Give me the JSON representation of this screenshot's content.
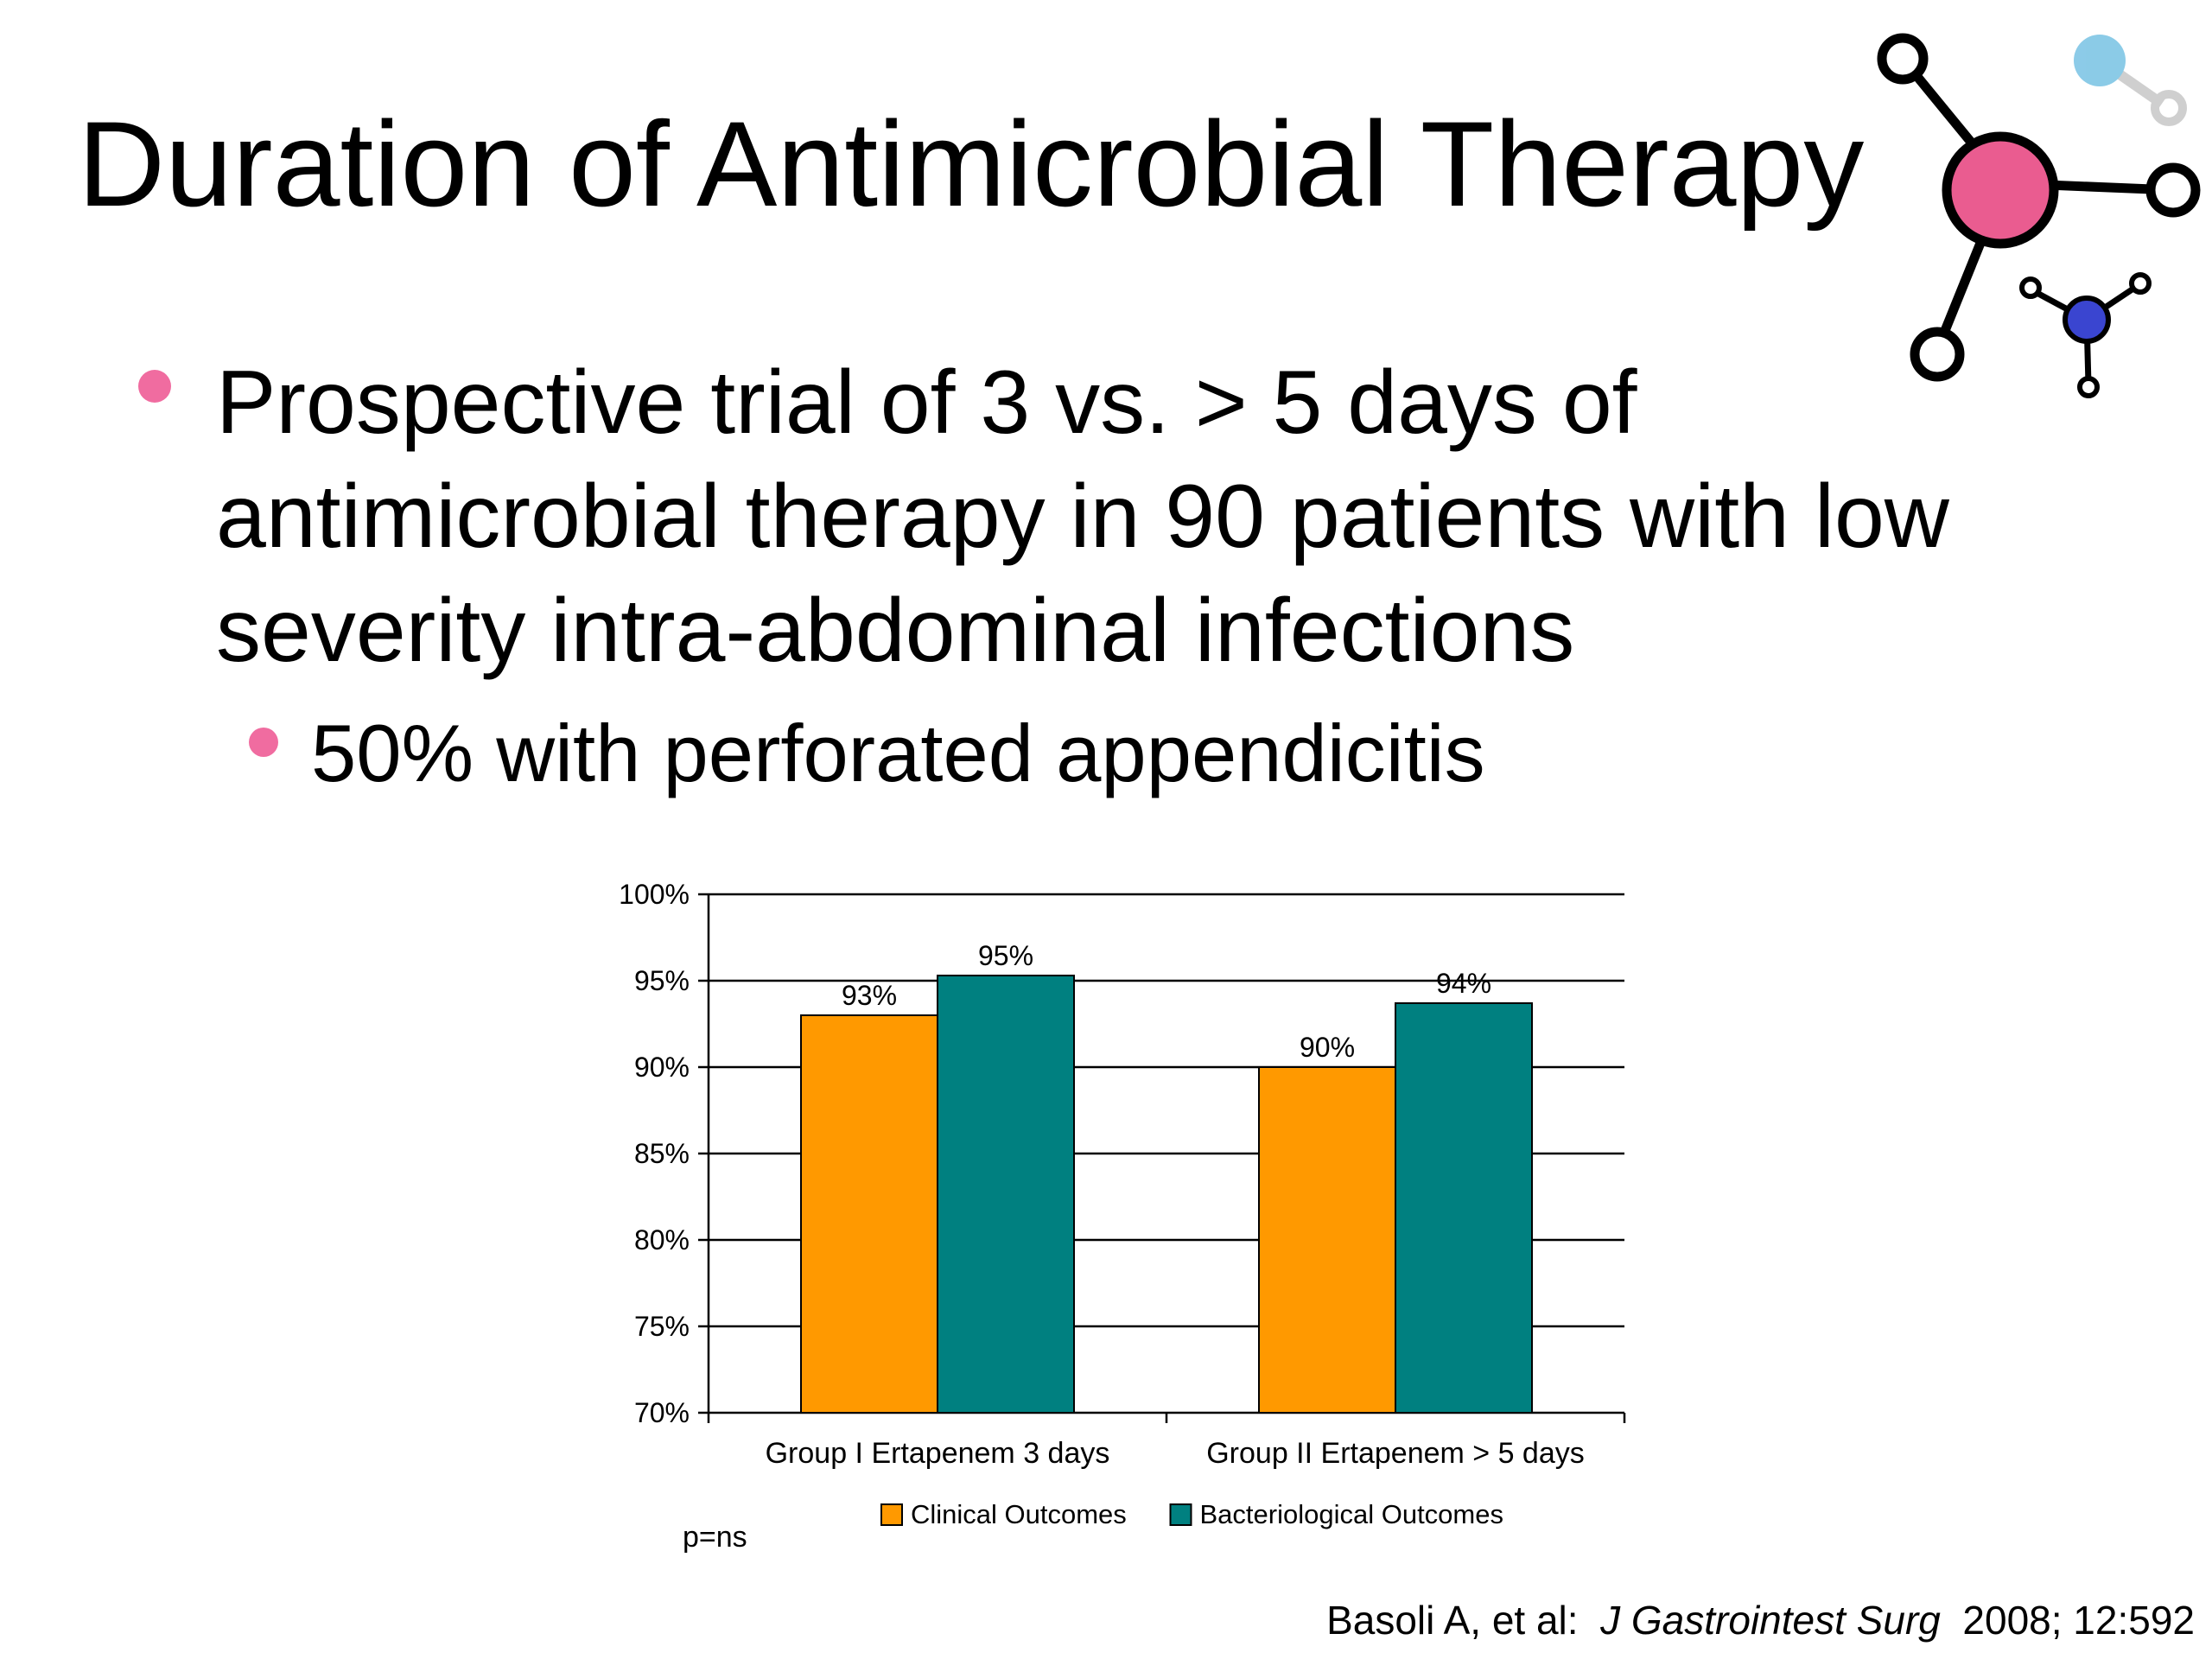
{
  "slide": {
    "title": "Duration of Antimicrobial Therapy",
    "bullets": [
      {
        "text": "Prospective trial of 3 vs. > 5 days of antimicrobial therapy in 90 patients with low severity intra-abdominal infections",
        "level": 1
      },
      {
        "text": "50% with perforated appendicitis",
        "level": 2
      }
    ],
    "citation": {
      "authors": "Basoli A, et al:",
      "journal": "J Gastrointest Surg",
      "details": "2008; 12:592"
    },
    "decoration": "molecule-icon"
  },
  "colors": {
    "accent_pink": "#f06ca0",
    "clinical": "#ff9900",
    "bacteriological": "#008080",
    "molecule_blue_light": "#3fa9d8",
    "molecule_blue_dark": "#3a45d0"
  },
  "chart_data": {
    "type": "bar",
    "title": "",
    "xlabel": "",
    "ylabel": "",
    "categories": [
      "Group I Ertapenem 3 days",
      "Group II Ertapenem > 5 days"
    ],
    "series": [
      {
        "name": "Clinical Outcomes",
        "values": [
          93,
          90
        ],
        "labels": [
          "93%",
          "90%"
        ],
        "color": "#ff9900"
      },
      {
        "name": "Bacteriological Outcomes",
        "values": [
          95.3,
          93.7
        ],
        "labels": [
          "95%",
          "94%"
        ],
        "color": "#008080"
      }
    ],
    "ylim": [
      70,
      100
    ],
    "yticks": [
      70,
      75,
      80,
      85,
      90,
      95,
      100
    ],
    "ytick_labels": [
      "70%",
      "75%",
      "80%",
      "85%",
      "90%",
      "95%",
      "100%"
    ],
    "grid": true,
    "legend_position": "bottom",
    "annotation": "p=ns"
  }
}
